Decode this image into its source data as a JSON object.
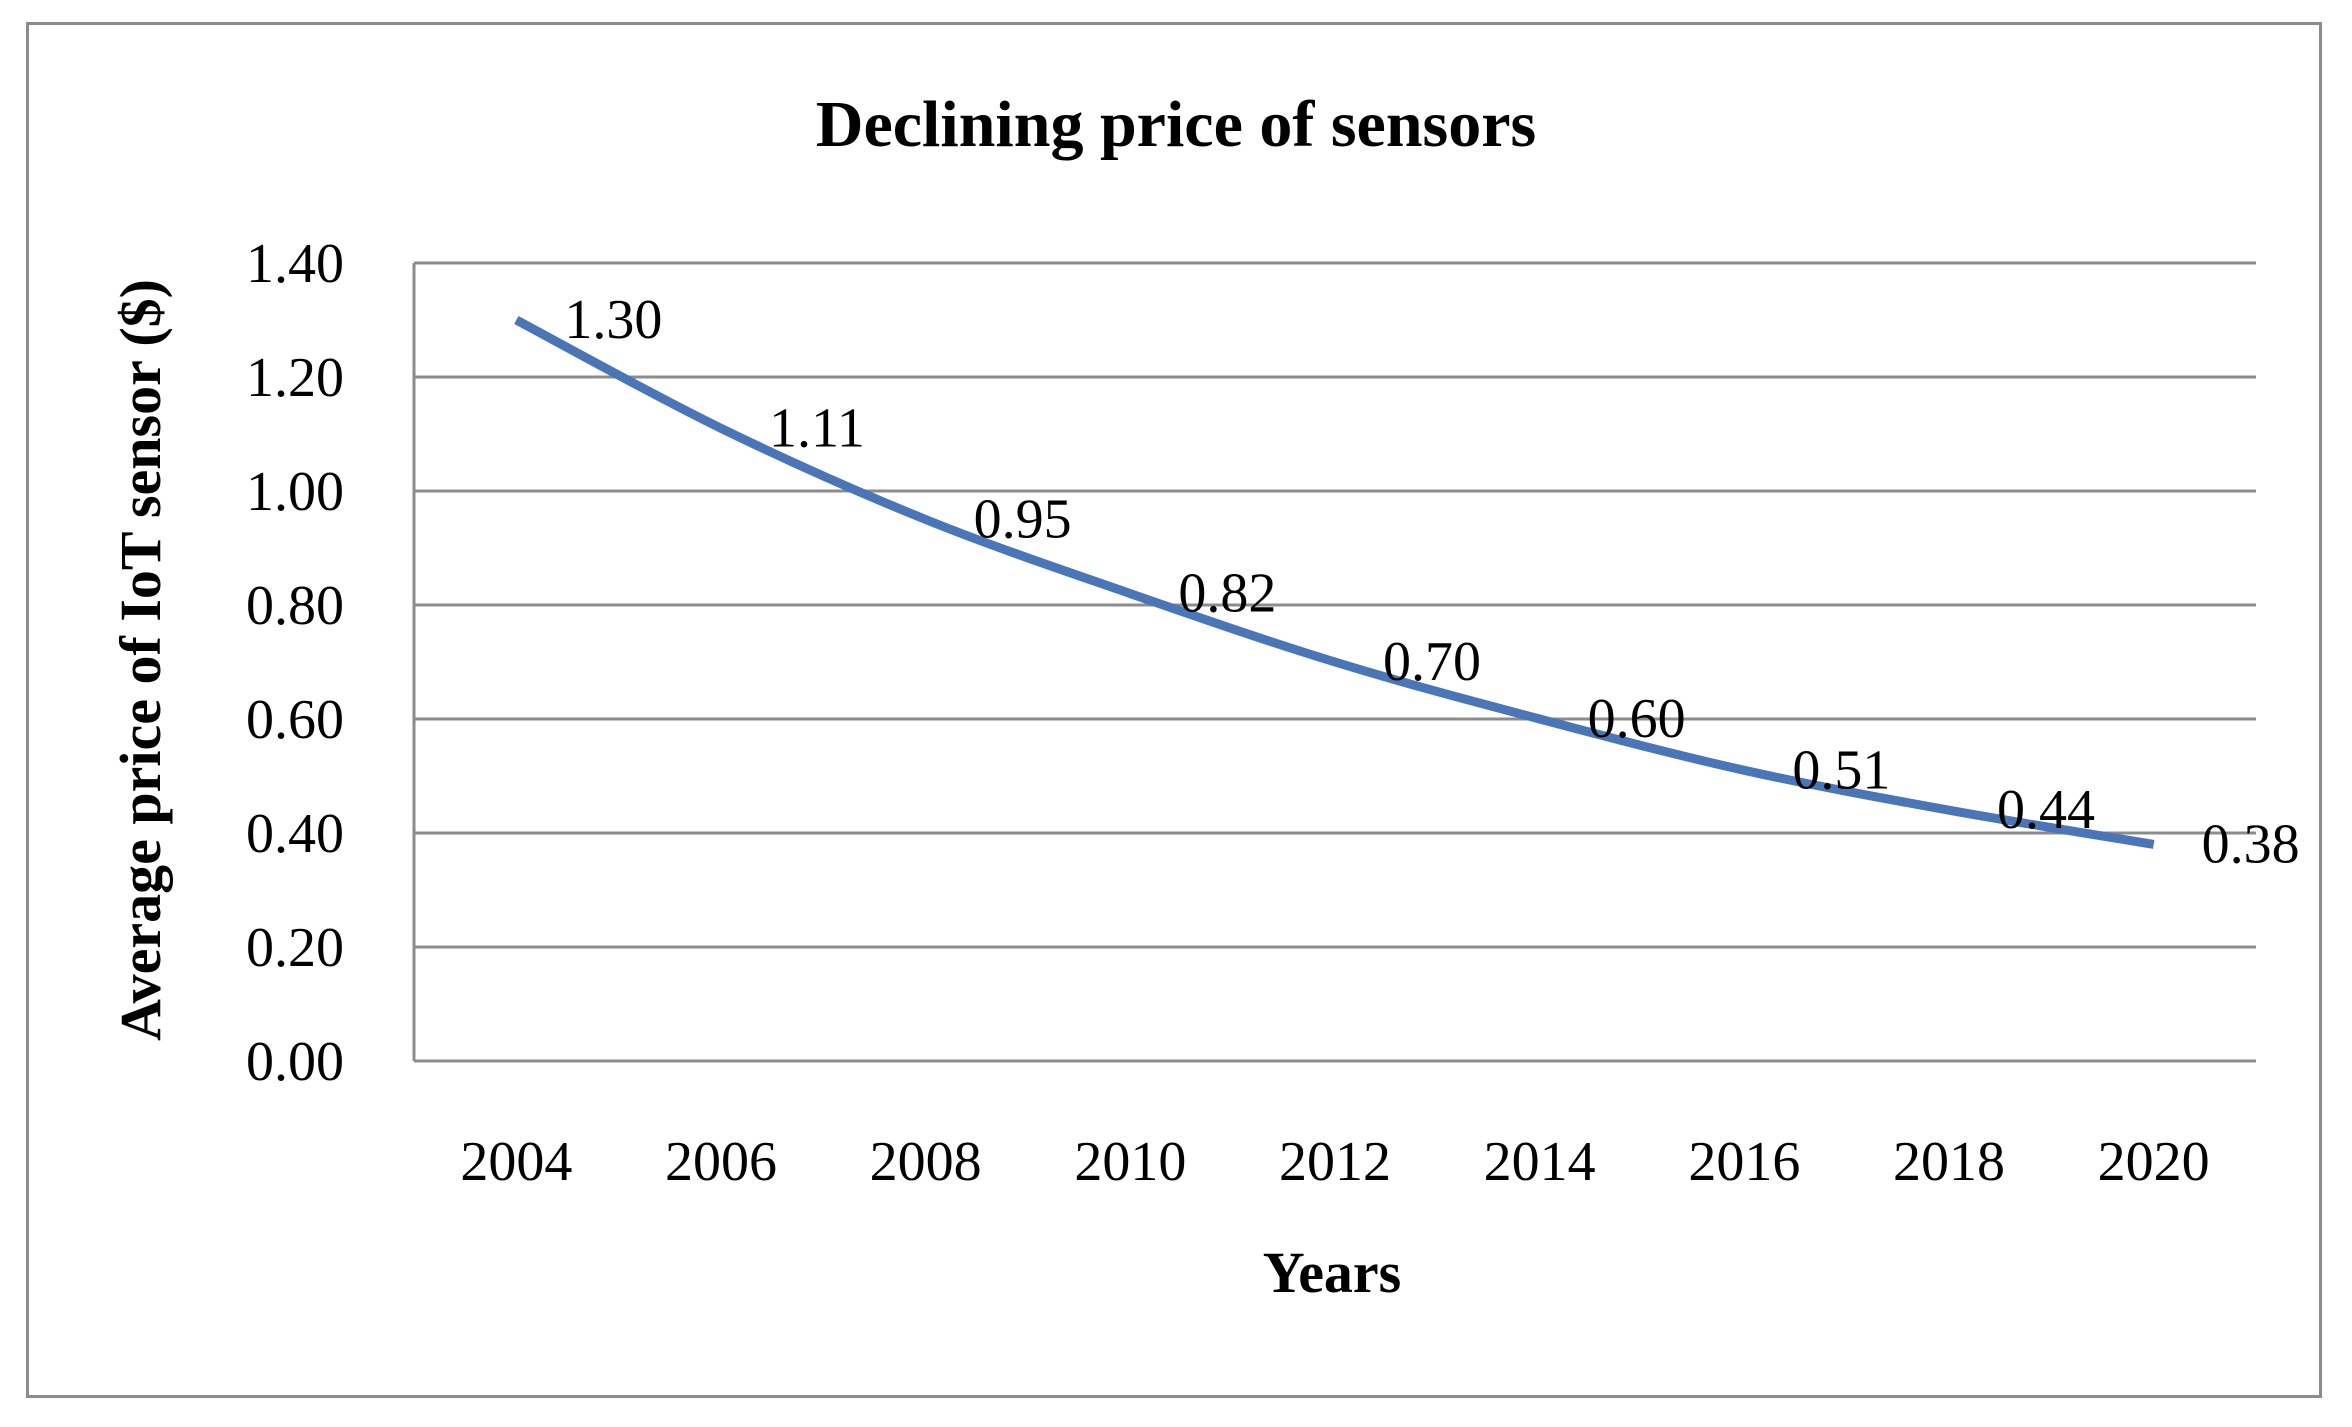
{
  "chart_data": {
    "type": "line",
    "title": "Declining price of sensors",
    "xlabel": "Years",
    "ylabel": "Average price of IoT sensor ($)",
    "categories": [
      "2004",
      "2006",
      "2008",
      "2010",
      "2012",
      "2014",
      "2016",
      "2018",
      "2020"
    ],
    "series": [
      {
        "name": "Average price of IoT sensor",
        "values": [
          1.3,
          1.11,
          0.95,
          0.82,
          0.7,
          0.6,
          0.51,
          0.44,
          0.38
        ],
        "labels": [
          "1.30",
          "1.11",
          "0.95",
          "0.82",
          "0.70",
          "0.60",
          "0.51",
          "0.44",
          "0.38"
        ],
        "color": "#4a76b8"
      }
    ],
    "ylim": [
      0,
      1.4
    ],
    "yticks": [
      "0.00",
      "0.20",
      "0.40",
      "0.60",
      "0.80",
      "1.00",
      "1.20",
      "1.40"
    ],
    "ytick_values": [
      0,
      0.2,
      0.4,
      0.6,
      0.8,
      1.0,
      1.2,
      1.4
    ],
    "grid": true,
    "legend": "none",
    "gridline_color": "#8c8c8c",
    "frame_color": "#8c8c8c"
  }
}
